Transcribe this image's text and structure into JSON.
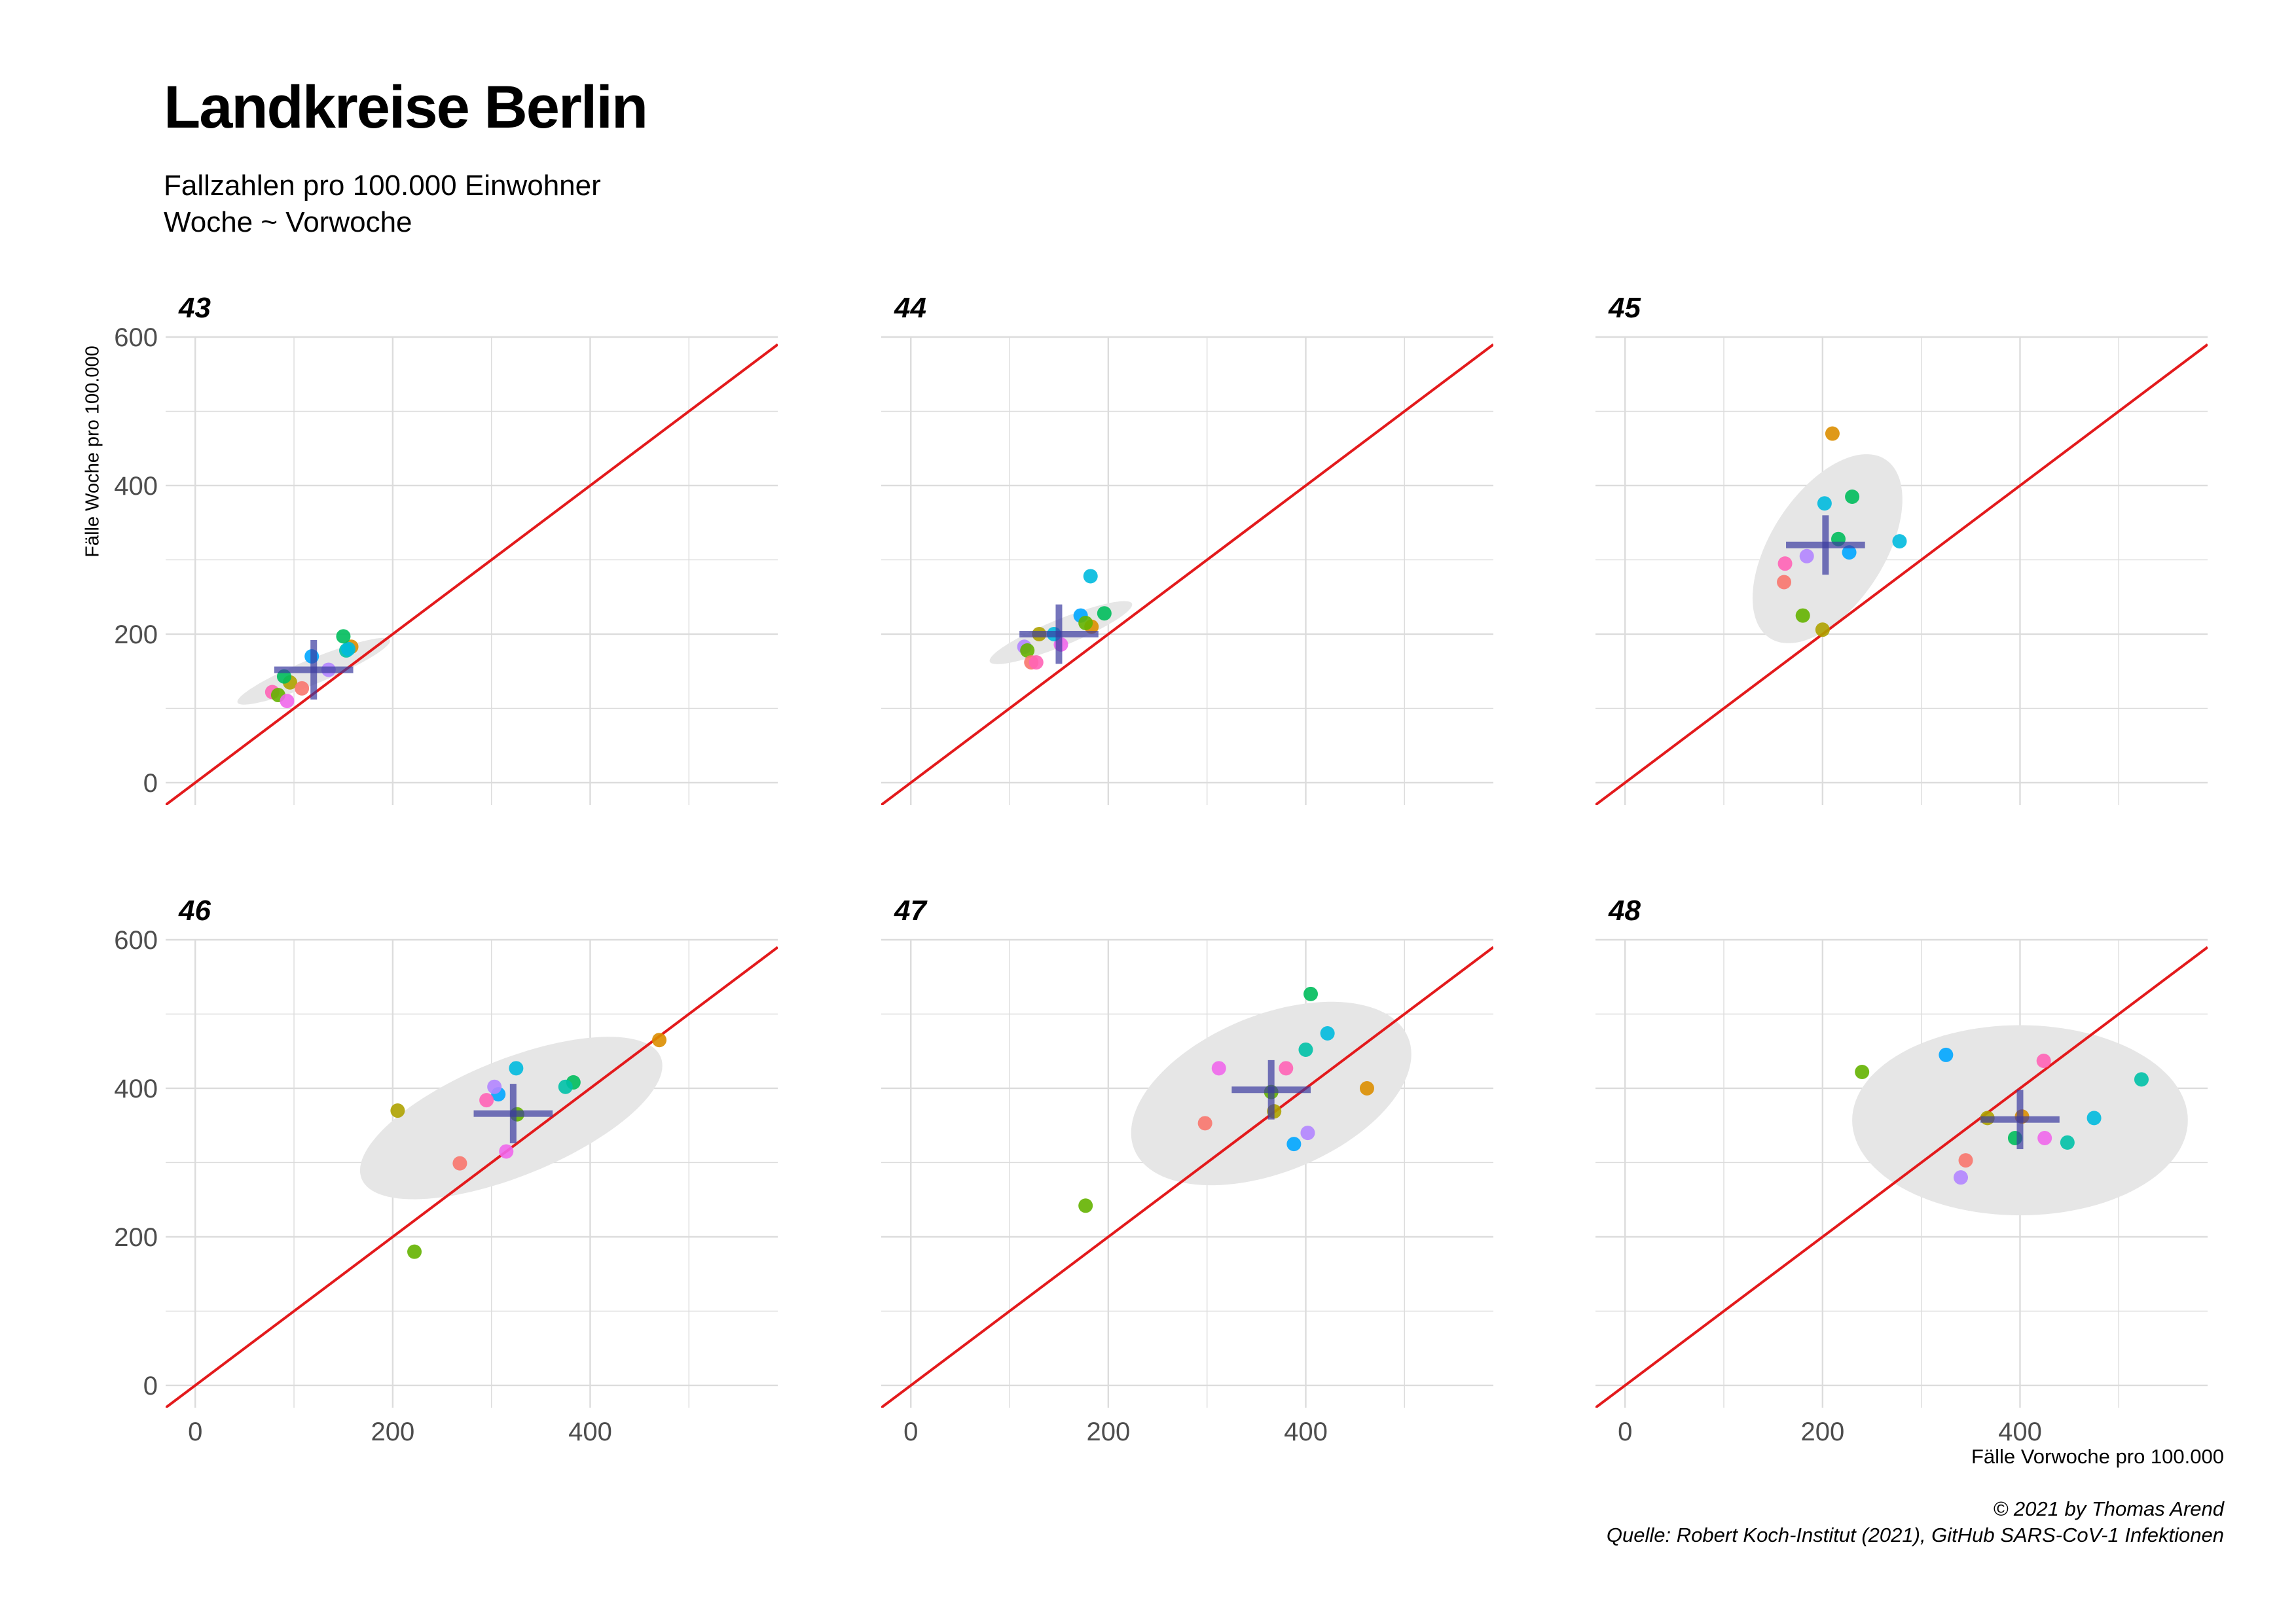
{
  "title": "Landkreise Berlin",
  "subtitle_lines": [
    "Fallzahlen pro 100.000 Einwohner",
    "Woche ~ Vorwoche"
  ],
  "caption_lines": [
    "© 2021 by Thomas Arend",
    "Quelle: Robert Koch-Institut (2021), GitHub SARS-CoV-1 Infektionen"
  ],
  "colors": {
    "reference_line": "#e31a1c",
    "ellipse": "#e6e6e6",
    "mean_cross": "#3a3aa0",
    "grid": "#dcdcdc"
  },
  "chart_data": {
    "type": "scatter",
    "facet_by": "Woche",
    "xlabel": "Fälle Vorwoche pro 100.000",
    "ylabel": "Fälle Woche pro 100.000",
    "xlim": [
      -30,
      590
    ],
    "ylim": [
      -30,
      600
    ],
    "x_ticks": [
      0,
      200,
      400
    ],
    "y_ticks": [
      0,
      200,
      400,
      600
    ],
    "reference_line": "y = x",
    "grid": true,
    "point_colors": [
      "#F8766D",
      "#DB8E00",
      "#AEA200",
      "#64B200",
      "#00BD5C",
      "#00C1A7",
      "#00BADE",
      "#00A6FF",
      "#B385FF",
      "#EF67EB",
      "#FF63B6"
    ],
    "facets": [
      {
        "label": "43",
        "mean": [
          120,
          152
        ],
        "ellipse": {
          "cx": 120,
          "cy": 150,
          "rx": 88,
          "ry": 16,
          "angle": 29
        },
        "points": [
          [
            158,
            183,
            1
          ],
          [
            153,
            178,
            5
          ],
          [
            155,
            180,
            6
          ],
          [
            150,
            197,
            4
          ],
          [
            118,
            170,
            7
          ],
          [
            78,
            122,
            10
          ],
          [
            84,
            118,
            3
          ],
          [
            96,
            135,
            2
          ],
          [
            108,
            127,
            0
          ],
          [
            93,
            110,
            9
          ],
          [
            90,
            143,
            4
          ],
          [
            135,
            152,
            8
          ]
        ]
      },
      {
        "label": "44",
        "mean": [
          150,
          200
        ],
        "ellipse": {
          "cx": 152,
          "cy": 202,
          "rx": 82,
          "ry": 17,
          "angle": 29
        },
        "points": [
          [
            182,
            278,
            6
          ],
          [
            196,
            228,
            4
          ],
          [
            183,
            210,
            1
          ],
          [
            172,
            225,
            7
          ],
          [
            177,
            215,
            3
          ],
          [
            152,
            186,
            9
          ],
          [
            145,
            200,
            6
          ],
          [
            130,
            200,
            2
          ],
          [
            115,
            183,
            8
          ],
          [
            118,
            178,
            3
          ],
          [
            122,
            162,
            0
          ],
          [
            127,
            162,
            10
          ]
        ]
      },
      {
        "label": "45",
        "mean": [
          203,
          320
        ],
        "ellipse": {
          "cx": 205,
          "cy": 315,
          "rx": 135,
          "ry": 61,
          "angle": 68
        },
        "points": [
          [
            210,
            470,
            1
          ],
          [
            230,
            385,
            4
          ],
          [
            202,
            376,
            6
          ],
          [
            216,
            328,
            4
          ],
          [
            278,
            325,
            6
          ],
          [
            227,
            310,
            7
          ],
          [
            162,
            295,
            10
          ],
          [
            184,
            305,
            8
          ],
          [
            161,
            270,
            0
          ],
          [
            180,
            225,
            3
          ],
          [
            200,
            206,
            2
          ]
        ]
      },
      {
        "label": "46",
        "mean": [
          322,
          366
        ],
        "ellipse": {
          "cx": 320,
          "cy": 360,
          "rx": 173,
          "ry": 74,
          "angle": 31
        },
        "points": [
          [
            470,
            465,
            1
          ],
          [
            383,
            408,
            4
          ],
          [
            375,
            402,
            5
          ],
          [
            325,
            427,
            6
          ],
          [
            307,
            392,
            7
          ],
          [
            303,
            402,
            8
          ],
          [
            295,
            384,
            10
          ],
          [
            205,
            370,
            2
          ],
          [
            326,
            365,
            3
          ],
          [
            315,
            315,
            9
          ],
          [
            268,
            299,
            0
          ],
          [
            222,
            180,
            3
          ]
        ]
      },
      {
        "label": "47",
        "mean": [
          365,
          398
        ],
        "ellipse": {
          "cx": 365,
          "cy": 393,
          "rx": 160,
          "ry": 99,
          "angle": 36
        },
        "points": [
          [
            405,
            527,
            4
          ],
          [
            422,
            474,
            6
          ],
          [
            400,
            452,
            5
          ],
          [
            312,
            427,
            9
          ],
          [
            380,
            427,
            10
          ],
          [
            462,
            400,
            1
          ],
          [
            365,
            395,
            3
          ],
          [
            368,
            369,
            2
          ],
          [
            298,
            353,
            0
          ],
          [
            402,
            340,
            8
          ],
          [
            388,
            325,
            7
          ],
          [
            177,
            242,
            3
          ]
        ]
      },
      {
        "label": "48",
        "mean": [
          400,
          358
        ],
        "ellipse": {
          "cx": 400,
          "cy": 357,
          "rx": 170,
          "ry": 128,
          "angle": 0
        },
        "points": [
          [
            240,
            422,
            3
          ],
          [
            325,
            445,
            7
          ],
          [
            523,
            412,
            5
          ],
          [
            424,
            437,
            10
          ],
          [
            475,
            360,
            6
          ],
          [
            402,
            362,
            1
          ],
          [
            367,
            360,
            2
          ],
          [
            395,
            333,
            4
          ],
          [
            448,
            327,
            5
          ],
          [
            425,
            333,
            9
          ],
          [
            345,
            303,
            0
          ],
          [
            340,
            280,
            8
          ]
        ]
      }
    ]
  }
}
